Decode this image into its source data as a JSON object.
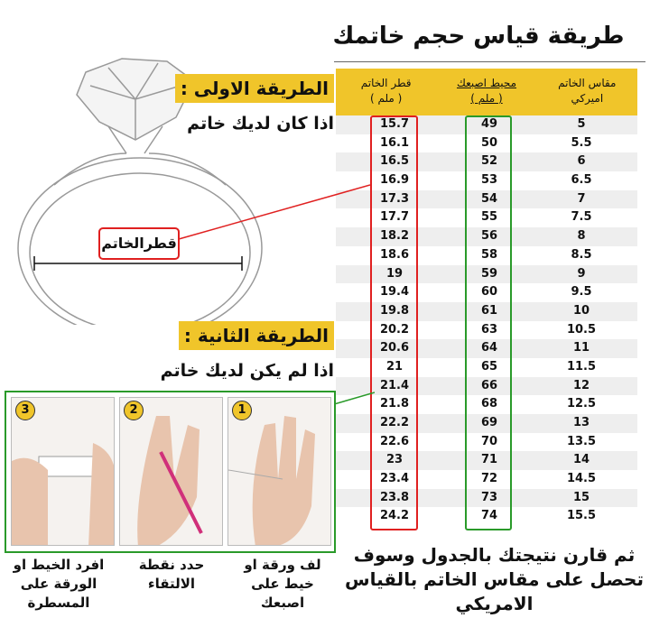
{
  "title": "طريقة قياس حجم خاتمك",
  "table": {
    "headers": {
      "diameter": "قطر الخاتم",
      "diameter_unit": "( ملم )",
      "circumference": "محيط اصبعك",
      "circumference_unit": "( ملم )",
      "us_size": "مقاس الخاتم",
      "us_size_sub": "اميركي"
    },
    "rows": [
      [
        "15.7",
        "49",
        "5"
      ],
      [
        "16.1",
        "50",
        "5.5"
      ],
      [
        "16.5",
        "52",
        "6"
      ],
      [
        "16.9",
        "53",
        "6.5"
      ],
      [
        "17.3",
        "54",
        "7"
      ],
      [
        "17.7",
        "55",
        "7.5"
      ],
      [
        "18.2",
        "56",
        "8"
      ],
      [
        "18.6",
        "58",
        "8.5"
      ],
      [
        "19",
        "59",
        "9"
      ],
      [
        "19.4",
        "60",
        "9.5"
      ],
      [
        "19.8",
        "61",
        "10"
      ],
      [
        "20.2",
        "63",
        "10.5"
      ],
      [
        "20.6",
        "64",
        "11"
      ],
      [
        "21",
        "65",
        "11.5"
      ],
      [
        "21.4",
        "66",
        "12"
      ],
      [
        "21.8",
        "68",
        "12.5"
      ],
      [
        "22.2",
        "69",
        "13"
      ],
      [
        "22.6",
        "70",
        "13.5"
      ],
      [
        "23",
        "71",
        "14"
      ],
      [
        "23.4",
        "72",
        "14.5"
      ],
      [
        "23.8",
        "73",
        "15"
      ],
      [
        "24.2",
        "74",
        "15.5"
      ]
    ]
  },
  "method1": {
    "banner": "الطريقة الاولى :",
    "text": "اذا كان لديك خاتم",
    "ring_label": "قطرالخاتم"
  },
  "method2": {
    "banner": "الطريقة الثانية :",
    "text": "اذا لم يكن لديك خاتم"
  },
  "steps": [
    {
      "num": "1",
      "caption": "لف ورقة او خيط على اصبعك"
    },
    {
      "num": "2",
      "caption": "حدد نقطة الالتقاء"
    },
    {
      "num": "3",
      "caption": "افرد الخيط او الورقة على المسطرة"
    }
  ],
  "final_text": "ثم قارن نتيجتك بالجدول وسوف تحصل على مقاس الخاتم بالقياس الامريكي",
  "colors": {
    "yellow": "#f0c52a",
    "red": "#e02020",
    "green": "#2a9a2a"
  }
}
